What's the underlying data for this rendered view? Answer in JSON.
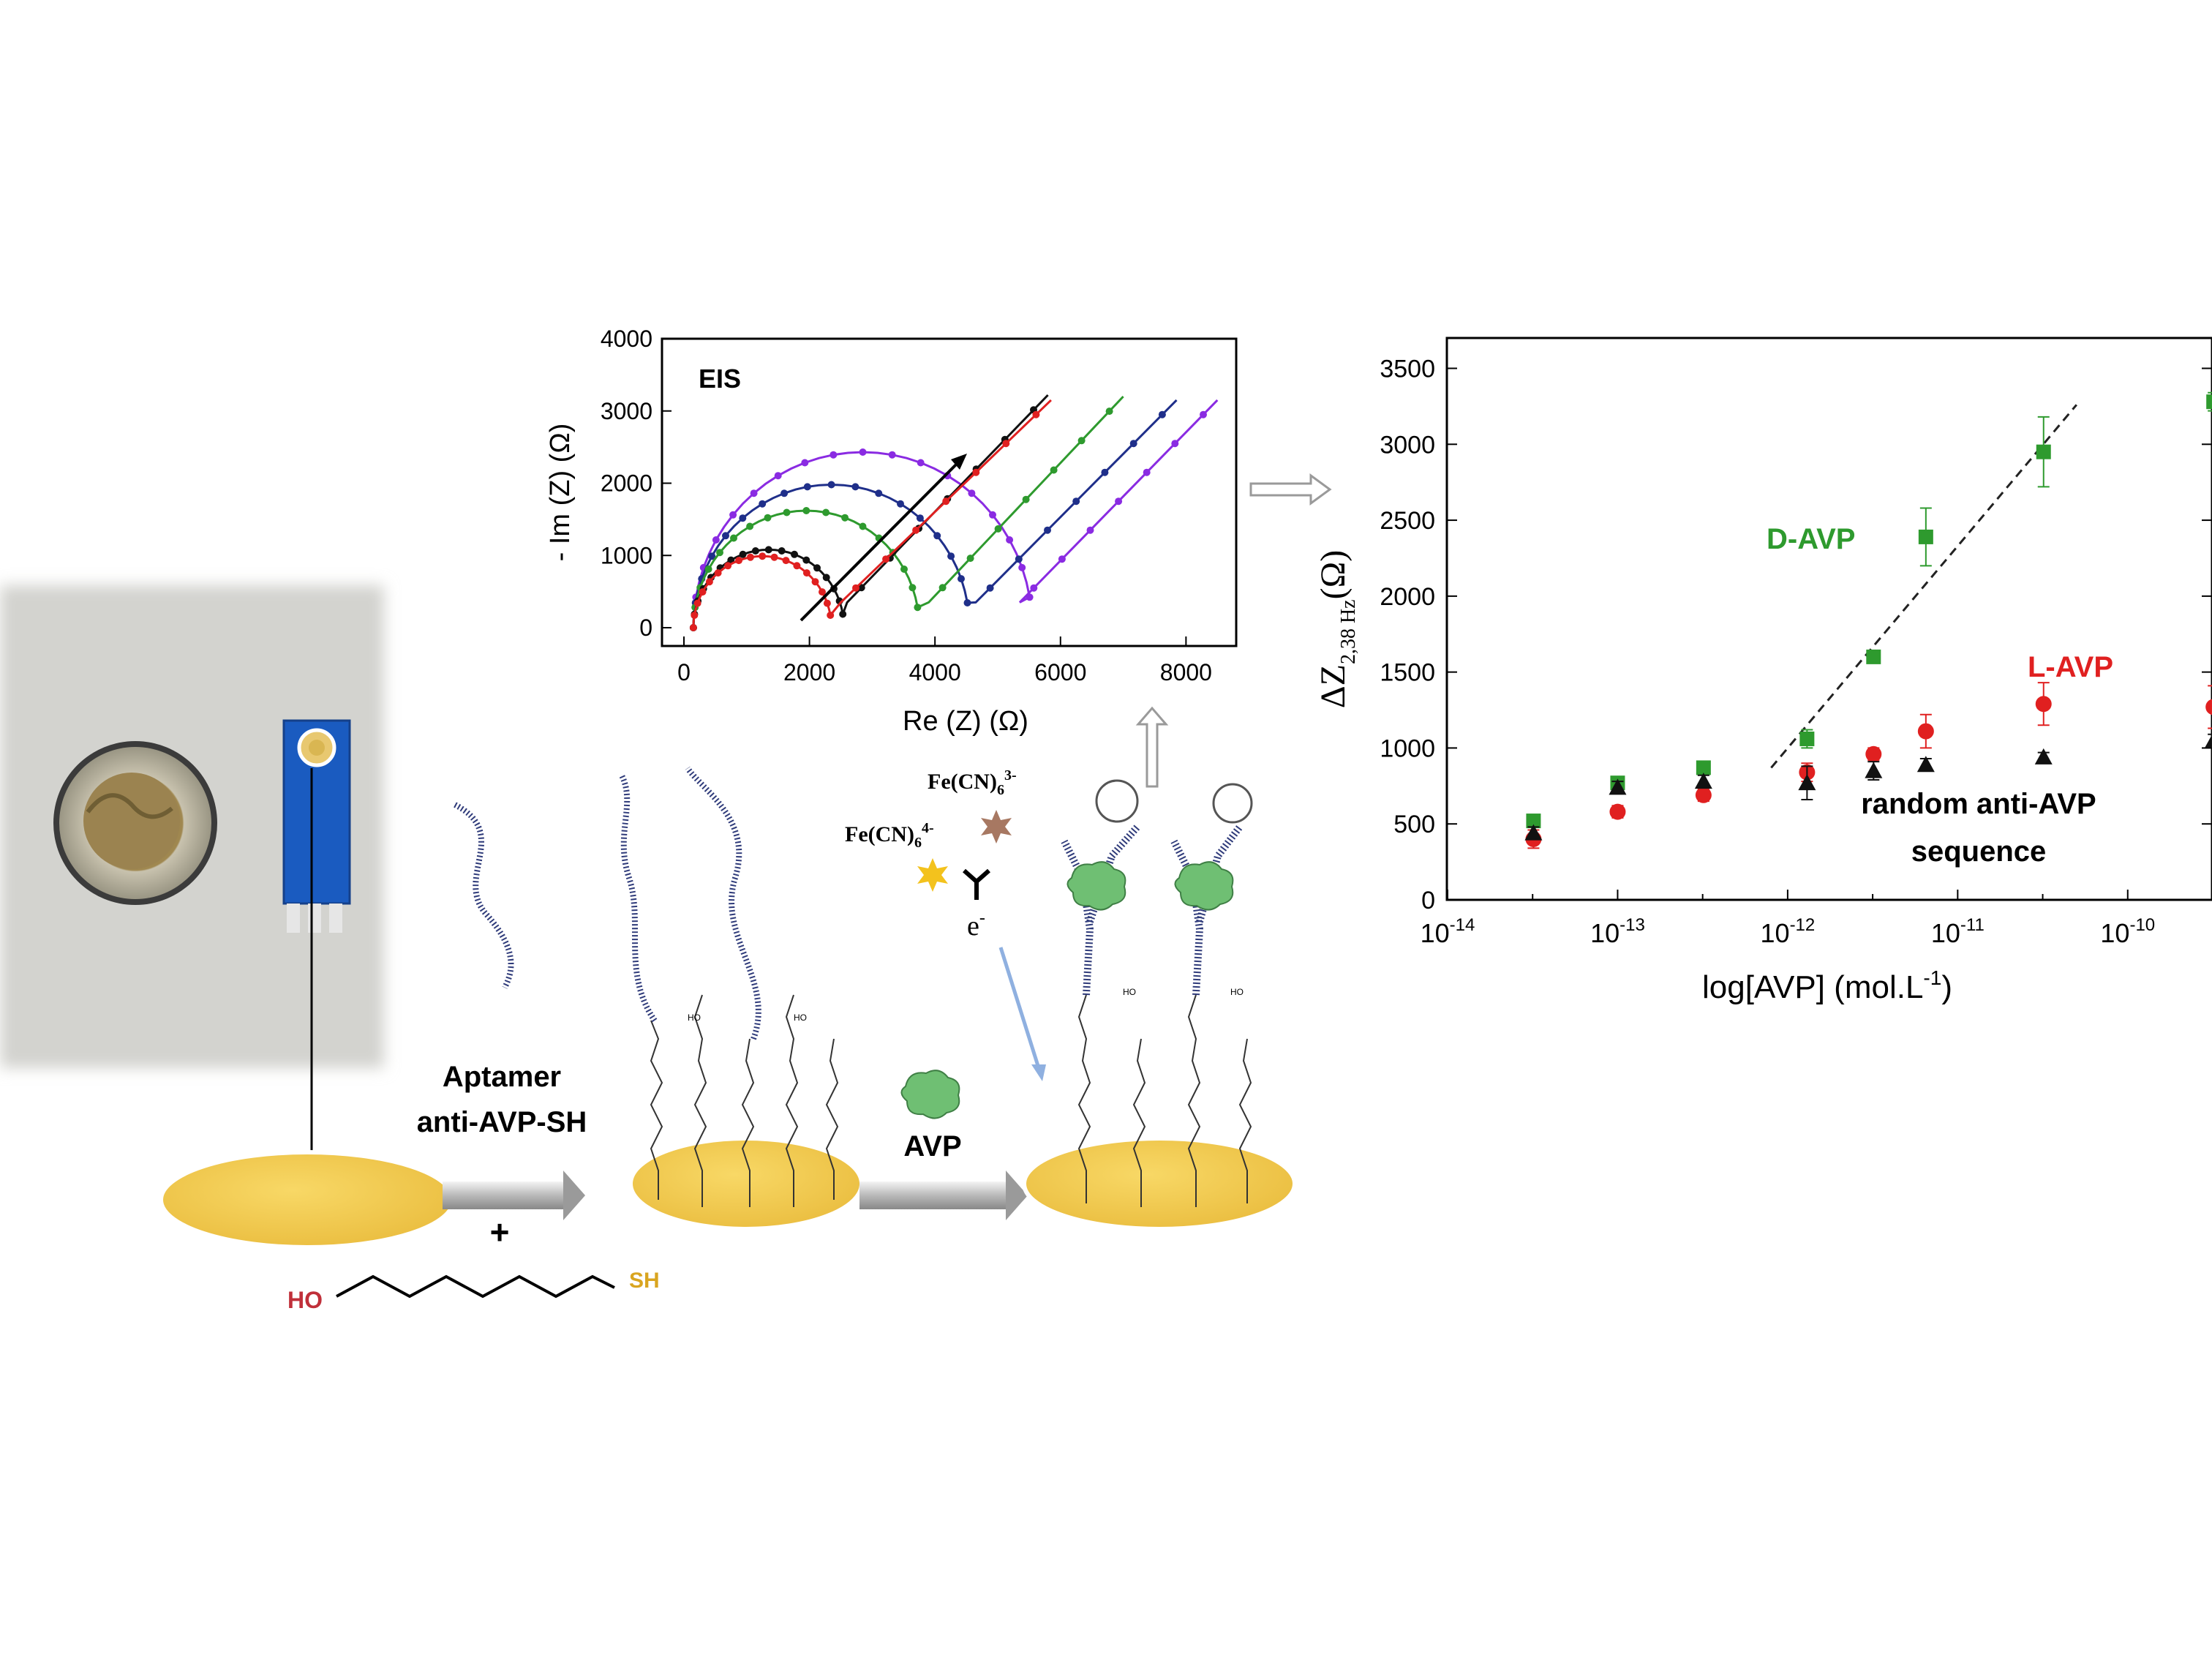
{
  "steps": {
    "aptamer_label_1": "Aptamer",
    "aptamer_label_2": "anti-AVP-SH",
    "plus": "+",
    "ho": "HO",
    "sh": "SH",
    "avp": "AVP",
    "fe3": "Fe(CN)",
    "fe3_sub": "6",
    "fe3_sup": "3-",
    "fe4": "Fe(CN)",
    "fe4_sub": "6",
    "fe4_sup": "4-",
    "electron": "e",
    "electron_sup": "-",
    "ho_small": "HO"
  },
  "colors": {
    "gold": "#f1c94a",
    "gold_edge": "#c9a23a",
    "aptamer": "#2f3b7a",
    "avp_green": "#6fbf73",
    "d_avp": "#2e9a2e",
    "l_avp": "#e02020",
    "random": "#111111",
    "arrow_blue": "#8fb0e0"
  },
  "eis": {
    "title": "EIS",
    "xlabel": "Re (Z) (Ω)",
    "ylabel": "- Im (Z) (Ω)",
    "x_ticks": [
      "0",
      "2000",
      "4000",
      "6000",
      "8000"
    ],
    "y_ticks": [
      "0",
      "1000",
      "2000",
      "3000",
      "4000"
    ]
  },
  "chart_data": {
    "type": "scatter",
    "xlabel": "log[AVP] (mol.L",
    "xlabel_sup": "-1",
    "xlabel_end": ")",
    "ylabel": "ΔZ",
    "ylabel_sub": "2,38 Hz",
    "ylabel_end": "(Ω)",
    "x_scale": "log",
    "xlim": [
      1e-14,
      1e-09
    ],
    "ylim": [
      0,
      3700
    ],
    "x_ticks": [
      {
        "base": "10",
        "exp": "-14"
      },
      {
        "base": "10",
        "exp": "-13"
      },
      {
        "base": "10",
        "exp": "-12"
      },
      {
        "base": "10",
        "exp": "-11"
      },
      {
        "base": "10",
        "exp": "-10"
      }
    ],
    "y_ticks": [
      "0",
      "500",
      "1000",
      "1500",
      "2000",
      "2500",
      "3000",
      "3500"
    ],
    "series": [
      {
        "name": "D-AVP",
        "color": "#2e9a2e",
        "marker": "square",
        "x": [
          3.2e-14,
          1e-13,
          3.2e-13,
          1.3e-12,
          3.2e-12,
          6.5e-12,
          3.2e-11,
          3.2e-10
        ],
        "y": [
          520,
          770,
          870,
          1060,
          1600,
          2390,
          2950,
          3280
        ],
        "err": [
          30,
          40,
          40,
          60,
          30,
          190,
          230,
          60
        ]
      },
      {
        "name": "L-AVP",
        "color": "#e02020",
        "marker": "circle",
        "x": [
          3.2e-14,
          1e-13,
          3.2e-13,
          1.3e-12,
          3.2e-12,
          6.5e-12,
          3.2e-11,
          3.2e-10
        ],
        "y": [
          400,
          580,
          690,
          840,
          960,
          1110,
          1290,
          1270
        ],
        "err": [
          60,
          40,
          40,
          60,
          40,
          110,
          140,
          140
        ]
      },
      {
        "name": "random anti-AVP sequence",
        "color": "#111111",
        "marker": "triangle",
        "x": [
          3.2e-14,
          1e-13,
          3.2e-13,
          1.3e-12,
          3.2e-12,
          6.5e-12,
          3.2e-11,
          3.2e-10
        ],
        "y": [
          440,
          740,
          780,
          770,
          850,
          890,
          940,
          1050
        ],
        "err": [
          40,
          40,
          40,
          110,
          60,
          40,
          30,
          40
        ]
      }
    ],
    "fit_line": {
      "x": [
        8e-13,
        5e-11
      ],
      "y": [
        870,
        3260
      ]
    },
    "labels": {
      "d": "D-AVP",
      "l": "L-AVP",
      "r1": "random anti-AVP",
      "r2": "sequence"
    }
  }
}
